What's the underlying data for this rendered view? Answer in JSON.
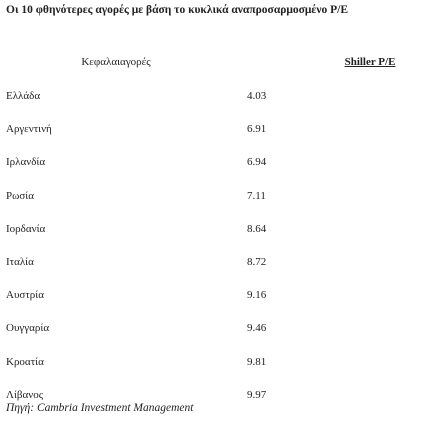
{
  "title": "Οι 10 φθηνότερες αγορές με βάση το κυκλικά αναπροσαρμοσμένο P/E",
  "table": {
    "header": [
      "Κεφαλαιαγορές",
      "Shiller P/E"
    ],
    "rows": [
      [
        "Ελλάδα",
        4.03
      ],
      [
        "Αργεντινή",
        6.91
      ],
      [
        "Ιρλανδία",
        6.94
      ],
      [
        "Ρωσία",
        7.11
      ],
      [
        "Ιορδανία",
        8.64
      ],
      [
        "Ιταλία",
        8.72
      ],
      [
        "Αυστρία",
        9.16
      ],
      [
        "Ουγγαρία",
        9.46
      ],
      [
        "Κροατία",
        9.81
      ],
      [
        "Λίβανος",
        9.97
      ]
    ]
  },
  "source": "Πηγή: Cambria Investment Management"
}
